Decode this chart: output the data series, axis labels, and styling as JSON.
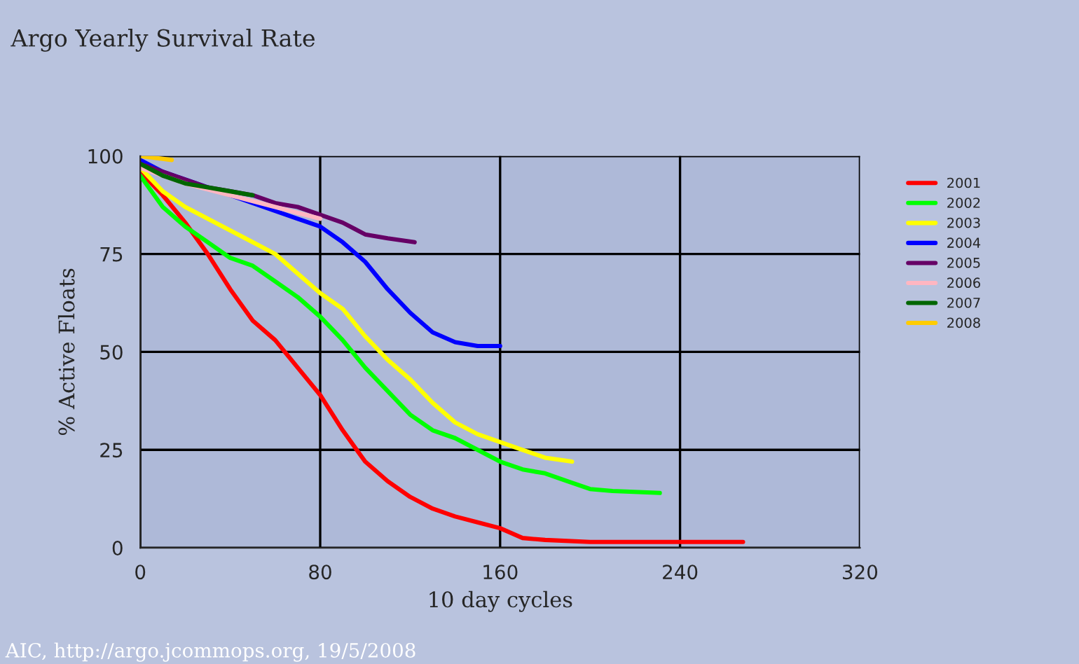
{
  "chart_data": {
    "type": "line",
    "title": "Argo Yearly Survival Rate",
    "xlabel": "10 day cycles",
    "ylabel": "% Active Floats",
    "annotations": [
      "AIC, http://argo.jcommops.org, 19/5/2008"
    ],
    "xlim": [
      0,
      320
    ],
    "xticks": [
      0,
      80,
      160,
      240,
      320
    ],
    "ylim": [
      0,
      100
    ],
    "yticks": [
      0,
      25,
      50,
      75,
      100
    ],
    "grid": true,
    "legend": "right",
    "line_style": "solid",
    "marker": "none",
    "series": [
      {
        "name": "2001",
        "color": "#ff0000",
        "x": [
          0,
          10,
          20,
          30,
          40,
          50,
          60,
          70,
          80,
          90,
          100,
          110,
          120,
          130,
          140,
          150,
          160,
          170,
          180,
          200,
          268
        ],
        "values": [
          96,
          90,
          83,
          75,
          66,
          58,
          53,
          46,
          39,
          30,
          22,
          17,
          13,
          10,
          8,
          6.5,
          5,
          2.5,
          2,
          1.5,
          1.5
        ]
      },
      {
        "name": "2002",
        "color": "#00ff00",
        "x": [
          0,
          10,
          20,
          30,
          40,
          50,
          60,
          70,
          80,
          90,
          100,
          110,
          120,
          130,
          140,
          150,
          160,
          170,
          180,
          190,
          200,
          210,
          231
        ],
        "values": [
          95,
          87,
          82,
          78,
          74,
          72,
          68,
          64,
          59,
          53,
          46,
          40,
          34,
          30,
          28,
          25,
          22,
          20,
          19,
          17,
          15,
          14.5,
          14
        ]
      },
      {
        "name": "2003",
        "color": "#ffff00",
        "x": [
          0,
          10,
          20,
          30,
          40,
          50,
          60,
          70,
          80,
          90,
          100,
          110,
          120,
          130,
          140,
          150,
          160,
          170,
          180,
          192
        ],
        "values": [
          97,
          91,
          87,
          84,
          81,
          78,
          75,
          70,
          65,
          61,
          54,
          48,
          43,
          37,
          32,
          29,
          27,
          25,
          23,
          22
        ]
      },
      {
        "name": "2004",
        "color": "#0000ff",
        "x": [
          0,
          10,
          20,
          30,
          40,
          50,
          60,
          70,
          80,
          90,
          100,
          110,
          120,
          130,
          140,
          150,
          160
        ],
        "values": [
          99,
          96,
          null,
          null,
          90,
          88,
          86,
          84,
          82,
          78,
          73,
          66,
          60,
          55,
          52.5,
          51.5,
          51.5
        ]
      },
      {
        "name": "2005",
        "color": "#660066",
        "x": [
          0,
          10,
          20,
          30,
          40,
          50,
          60,
          70,
          80,
          90,
          100,
          110,
          122
        ],
        "values": [
          98,
          96,
          94,
          92,
          91,
          90,
          88,
          87,
          85,
          83,
          80,
          79,
          78
        ]
      },
      {
        "name": "2006",
        "color": "#ffb6c1",
        "x": [
          0,
          20,
          40,
          60,
          80
        ],
        "values": [
          97,
          93,
          90,
          87,
          84
        ]
      },
      {
        "name": "2007",
        "color": "#006600",
        "x": [
          0,
          10,
          20,
          30,
          40,
          50
        ],
        "values": [
          98,
          95,
          93,
          92,
          91,
          90
        ]
      },
      {
        "name": "2008",
        "color": "#ffcc00",
        "x": [
          0,
          14
        ],
        "values": [
          100,
          99
        ]
      }
    ]
  }
}
